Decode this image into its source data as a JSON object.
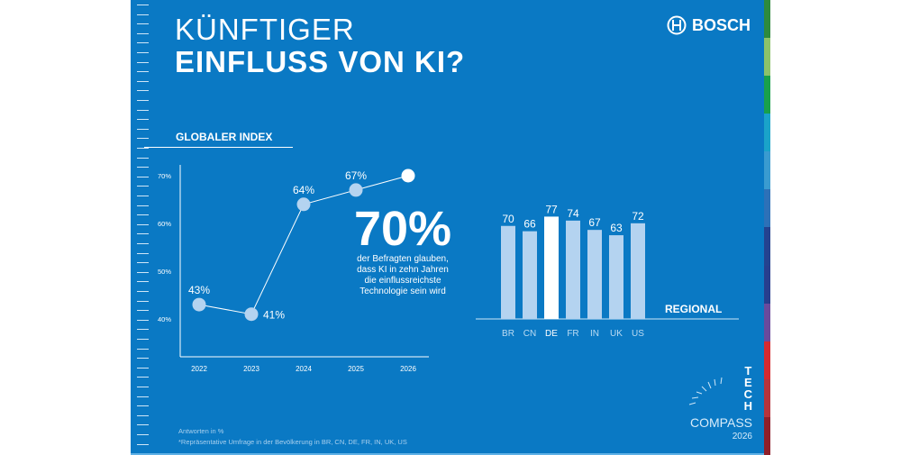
{
  "title_line1": "KÜNFTIGER",
  "title_line2": "EINFLUSS VON KI?",
  "brand": "BOSCH",
  "colors": {
    "background": "#0a79c4",
    "point": "#b4d3f0",
    "highlight": "#ffffff",
    "bar": "#b4d3f0"
  },
  "headline_value": "70%",
  "headline_text": [
    "der Befragten glauben,",
    "dass KI in zehn Jahren",
    "die einflussreichste",
    "Technologie sein wird"
  ],
  "footnote1": "Antworten in %",
  "footnote2": "*Repräsentative Umfrage in der Bevölkerung in BR, CN, DE, FR, IN, UK, US",
  "logo": {
    "tech": [
      "T",
      "E",
      "C",
      "H"
    ],
    "compass": "COMPASS",
    "year": "2026"
  },
  "chart_data": [
    {
      "type": "line",
      "title": "GLOBALER INDEX",
      "x": [
        "2022",
        "2023",
        "2024",
        "2025",
        "2026"
      ],
      "values": [
        43,
        41,
        64,
        67,
        70
      ],
      "point_labels": [
        "43%",
        "41%",
        "64%",
        "67%",
        ""
      ],
      "ylim": [
        30,
        72
      ],
      "yticks": [
        40,
        50,
        60,
        70
      ],
      "ytick_labels": [
        "40%",
        "50%",
        "60%",
        "70%"
      ],
      "highlight": "2026"
    },
    {
      "type": "bar",
      "title": "REGIONAL",
      "categories": [
        "BR",
        "CN",
        "DE",
        "FR",
        "IN",
        "UK",
        "US"
      ],
      "values": [
        70,
        66,
        77,
        74,
        67,
        63,
        72
      ],
      "highlight": "DE"
    }
  ]
}
